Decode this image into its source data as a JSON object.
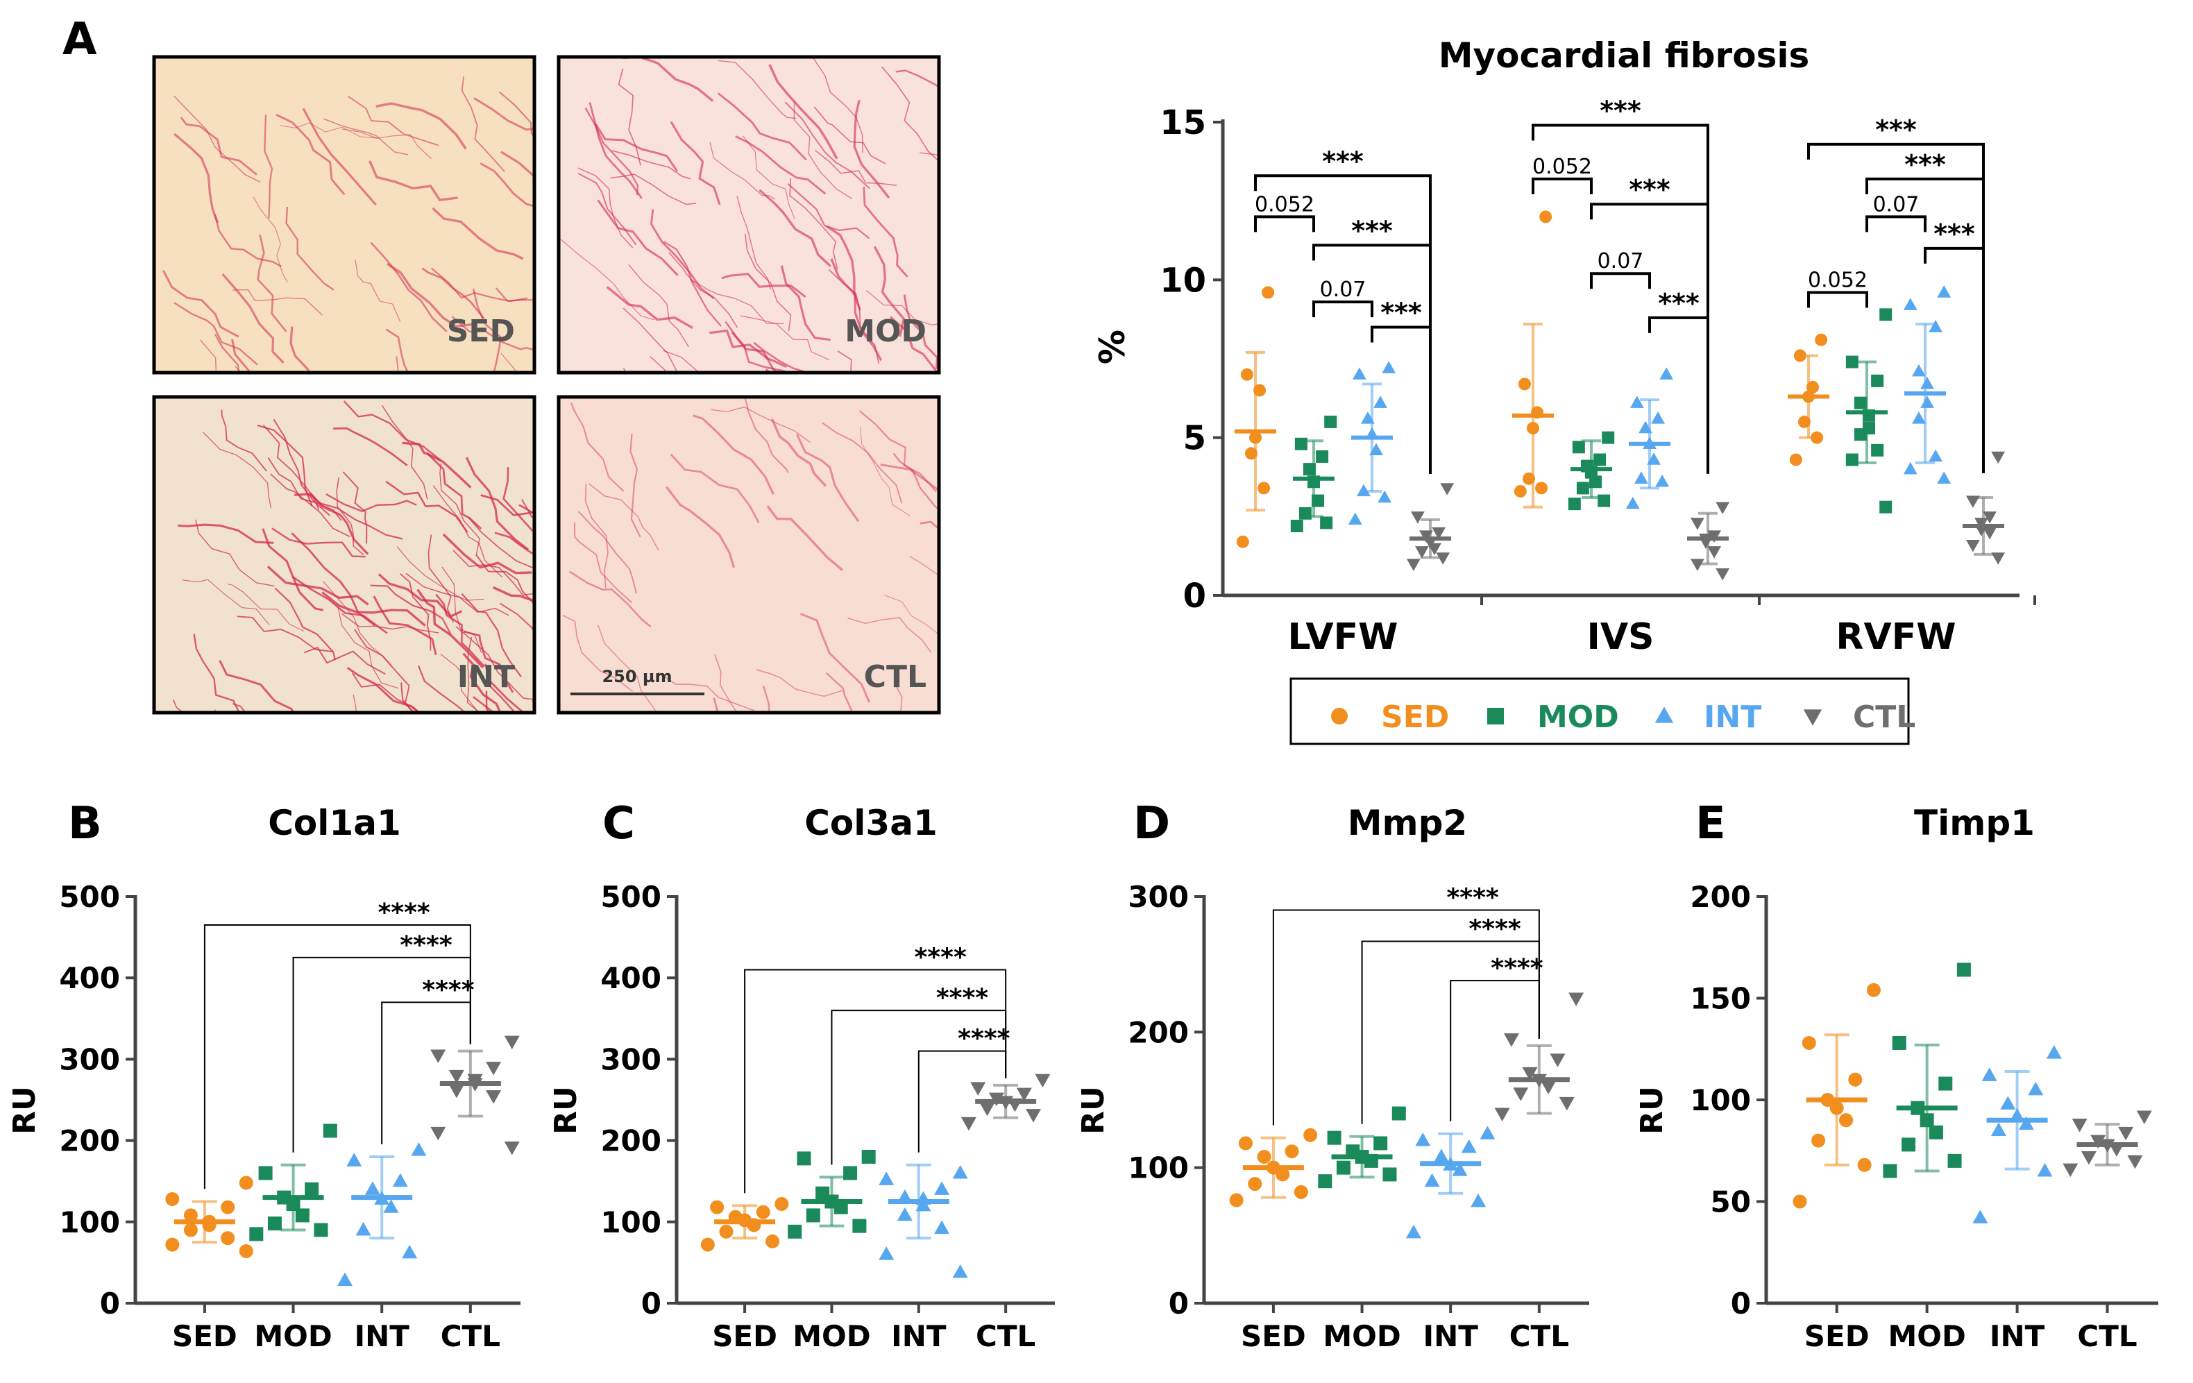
{
  "colors": {
    "SED": "#f28e1e",
    "MOD": "#1b8a5a",
    "INT": "#56a6f0",
    "CTL": "#6e6e6e",
    "stain_bg_SED": "#f6e0c0",
    "stain_bg_other": "#f8ddd6",
    "fiber": "#d6284e"
  },
  "panel_a": {
    "letter": "A",
    "images": [
      {
        "label": "SED"
      },
      {
        "label": "MOD"
      },
      {
        "label": "INT"
      },
      {
        "label": "CTL"
      }
    ],
    "scale_bar": "250 µm"
  },
  "legend": {
    "items": [
      {
        "group": "SED",
        "marker": "circle"
      },
      {
        "group": "MOD",
        "marker": "square"
      },
      {
        "group": "INT",
        "marker": "triangle-up"
      },
      {
        "group": "CTL",
        "marker": "triangle-down"
      }
    ]
  },
  "chart_data": [
    {
      "id": "fibrosis",
      "type": "scatter",
      "title": "Myocardial fibrosis",
      "ylabel": "%",
      "ylim": [
        0,
        15
      ],
      "yticks": [
        0,
        5,
        10,
        15
      ],
      "categories": [
        "LVFW",
        "IVS",
        "RVFW"
      ],
      "groups": [
        "SED",
        "MOD",
        "INT",
        "CTL"
      ],
      "series": [
        {
          "name": "SED",
          "means": [
            5.2,
            5.7,
            6.3
          ],
          "sd": [
            2.5,
            2.9,
            1.3
          ],
          "points": [
            [
              9.6,
              7.0,
              6.5,
              5.0,
              4.5,
              3.4,
              1.7
            ],
            [
              12.0,
              6.7,
              5.8,
              5.3,
              3.7,
              3.4,
              3.3
            ],
            [
              8.1,
              7.6,
              6.6,
              6.3,
              5.5,
              5.0,
              4.3
            ]
          ]
        },
        {
          "name": "MOD",
          "means": [
            3.7,
            4.0,
            5.8
          ],
          "sd": [
            1.2,
            0.9,
            1.6
          ],
          "points": [
            [
              5.5,
              4.8,
              4.4,
              4.0,
              3.6,
              3.0,
              2.6,
              2.3,
              2.2
            ],
            [
              5.0,
              4.7,
              4.3,
              4.1,
              3.9,
              3.6,
              3.4,
              3.0,
              2.9
            ],
            [
              8.9,
              7.4,
              6.8,
              6.1,
              5.7,
              5.3,
              5.1,
              4.6,
              4.3,
              2.8
            ]
          ]
        },
        {
          "name": "INT",
          "means": [
            5.0,
            4.8,
            6.4
          ],
          "sd": [
            1.7,
            1.4,
            2.2
          ],
          "points": [
            [
              7.2,
              7.0,
              6.1,
              5.6,
              5.1,
              4.6,
              3.3,
              3.1,
              2.4
            ],
            [
              7.0,
              6.1,
              5.6,
              5.3,
              4.8,
              4.3,
              3.7,
              3.6,
              2.9
            ],
            [
              9.6,
              9.2,
              8.5,
              7.1,
              6.7,
              6.1,
              5.6,
              4.4,
              4.0,
              3.7
            ]
          ]
        },
        {
          "name": "CTL",
          "means": [
            1.8,
            1.8,
            2.2
          ],
          "sd": [
            0.6,
            0.8,
            0.9
          ],
          "points": [
            [
              3.4,
              2.5,
              2.0,
              1.9,
              1.7,
              1.5,
              1.4,
              1.2,
              1.0
            ],
            [
              2.8,
              2.3,
              1.9,
              1.8,
              1.7,
              1.4,
              1.0,
              0.7
            ],
            [
              4.4,
              3.0,
              2.5,
              2.3,
              2.1,
              2.0,
              1.6,
              1.2
            ]
          ]
        }
      ],
      "brackets": [
        {
          "cat": 0,
          "from": 0,
          "to": 3,
          "y": 13.3,
          "label": "***"
        },
        {
          "cat": 0,
          "from": 0,
          "to": 1,
          "y": 12.0,
          "label": "0.052"
        },
        {
          "cat": 0,
          "from": 1,
          "to": 3,
          "y": 11.1,
          "label": "***"
        },
        {
          "cat": 0,
          "from": 1,
          "to": 2,
          "y": 9.3,
          "label": "0.07"
        },
        {
          "cat": 0,
          "from": 2,
          "to": 3,
          "y": 8.5,
          "label": "***"
        },
        {
          "cat": 1,
          "from": 0,
          "to": 3,
          "y": 14.9,
          "label": "***"
        },
        {
          "cat": 1,
          "from": 0,
          "to": 1,
          "y": 13.2,
          "label": "0.052"
        },
        {
          "cat": 1,
          "from": 1,
          "to": 3,
          "y": 12.4,
          "label": "***"
        },
        {
          "cat": 1,
          "from": 1,
          "to": 2,
          "y": 10.2,
          "label": "0.07"
        },
        {
          "cat": 1,
          "from": 2,
          "to": 3,
          "y": 8.8,
          "label": "***"
        },
        {
          "cat": 2,
          "from": 0,
          "to": 3,
          "y": 14.3,
          "label": "***"
        },
        {
          "cat": 2,
          "from": 1,
          "to": 3,
          "y": 13.2,
          "label": "***"
        },
        {
          "cat": 2,
          "from": 1,
          "to": 2,
          "y": 12.0,
          "label": "0.07"
        },
        {
          "cat": 2,
          "from": 0,
          "to": 1,
          "y": 9.6,
          "label": "0.052"
        },
        {
          "cat": 2,
          "from": 2,
          "to": 3,
          "y": 11.0,
          "label": "***"
        }
      ]
    },
    {
      "id": "col1a1",
      "letter": "B",
      "type": "scatter",
      "title": "Col1a1",
      "ylabel": "RU",
      "ylim": [
        0,
        500
      ],
      "yticks": [
        0,
        100,
        200,
        300,
        400,
        500
      ],
      "categories": [
        "SED",
        "MOD",
        "INT",
        "CTL"
      ],
      "means": [
        100,
        130,
        130,
        270
      ],
      "sd": [
        25,
        40,
        50,
        40
      ],
      "points": [
        [
          148,
          128,
          118,
          108,
          100,
          96,
          90,
          80,
          72,
          64
        ],
        [
          212,
          160,
          140,
          130,
          122,
          108,
          98,
          90,
          85
        ],
        [
          188,
          175,
          150,
          140,
          128,
          118,
          90,
          62,
          28
        ],
        [
          322,
          305,
          290,
          280,
          275,
          270,
          262,
          255,
          210,
          192
        ]
      ],
      "brackets": [
        {
          "from": 0,
          "to": 3,
          "y": 465,
          "label": "****"
        },
        {
          "from": 1,
          "to": 3,
          "y": 425,
          "label": "****"
        },
        {
          "from": 2,
          "to": 3,
          "y": 370,
          "label": "****"
        }
      ]
    },
    {
      "id": "col3a1",
      "letter": "C",
      "type": "scatter",
      "title": "Col3a1",
      "ylabel": "RU",
      "ylim": [
        0,
        500
      ],
      "yticks": [
        0,
        100,
        200,
        300,
        400,
        500
      ],
      "categories": [
        "SED",
        "MOD",
        "INT",
        "CTL"
      ],
      "means": [
        100,
        125,
        125,
        248
      ],
      "sd": [
        20,
        30,
        45,
        20
      ],
      "points": [
        [
          122,
          118,
          112,
          106,
          102,
          96,
          88,
          76,
          72
        ],
        [
          180,
          178,
          160,
          135,
          125,
          118,
          108,
          95,
          88
        ],
        [
          160,
          152,
          140,
          130,
          128,
          120,
          108,
          92,
          60,
          38
        ],
        [
          275,
          265,
          258,
          252,
          248,
          245,
          240,
          232,
          222
        ]
      ],
      "brackets": [
        {
          "from": 0,
          "to": 3,
          "y": 410,
          "label": "****"
        },
        {
          "from": 1,
          "to": 3,
          "y": 360,
          "label": "****"
        },
        {
          "from": 2,
          "to": 3,
          "y": 310,
          "label": "****"
        }
      ]
    },
    {
      "id": "mmp2",
      "letter": "D",
      "type": "scatter",
      "title": "Mmp2",
      "ylabel": "RU",
      "ylim": [
        0,
        300
      ],
      "yticks": [
        0,
        100,
        200,
        300
      ],
      "categories": [
        "SED",
        "MOD",
        "INT",
        "CTL"
      ],
      "means": [
        100,
        108,
        103,
        165
      ],
      "sd": [
        22,
        15,
        22,
        25
      ],
      "points": [
        [
          124,
          118,
          112,
          108,
          100,
          95,
          88,
          82,
          76
        ],
        [
          140,
          122,
          118,
          112,
          108,
          105,
          100,
          95,
          90
        ],
        [
          125,
          120,
          115,
          108,
          102,
          98,
          90,
          75,
          52
        ],
        [
          225,
          195,
          180,
          170,
          165,
          160,
          155,
          148,
          140
        ]
      ],
      "brackets": [
        {
          "from": 0,
          "to": 3,
          "y": 290,
          "label": "****"
        },
        {
          "from": 1,
          "to": 3,
          "y": 267,
          "label": "****"
        },
        {
          "from": 2,
          "to": 3,
          "y": 238,
          "label": "****"
        }
      ]
    },
    {
      "id": "timp1",
      "letter": "E",
      "type": "scatter",
      "title": "Timp1",
      "ylabel": "RU",
      "ylim": [
        0,
        200
      ],
      "yticks": [
        0,
        50,
        100,
        150,
        200
      ],
      "categories": [
        "SED",
        "MOD",
        "INT",
        "CTL"
      ],
      "means": [
        100,
        96,
        90,
        78
      ],
      "sd": [
        32,
        31,
        24,
        10
      ],
      "points": [
        [
          154,
          128,
          110,
          100,
          96,
          90,
          80,
          68,
          50
        ],
        [
          164,
          128,
          108,
          96,
          90,
          84,
          78,
          70,
          65
        ],
        [
          123,
          112,
          105,
          98,
          92,
          88,
          85,
          65,
          42
        ],
        [
          92,
          88,
          84,
          80,
          78,
          76,
          72,
          70,
          66
        ]
      ],
      "brackets": []
    }
  ]
}
